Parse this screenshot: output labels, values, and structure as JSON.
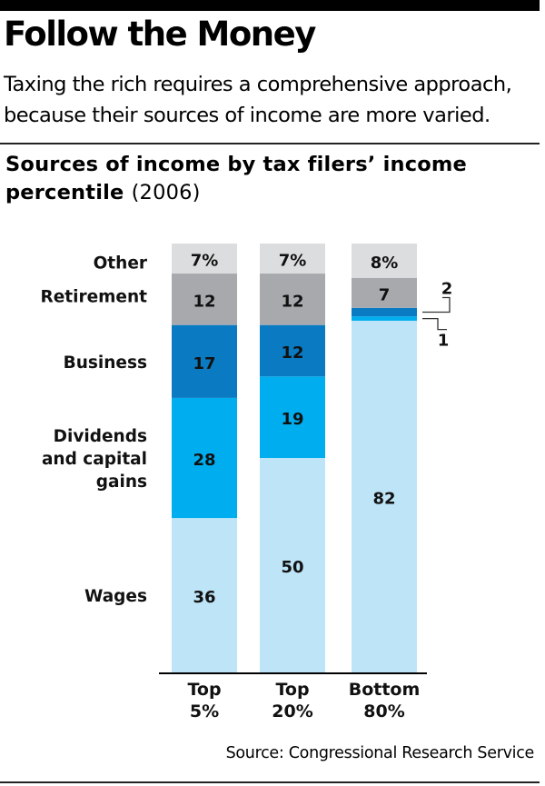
{
  "header": {
    "title": "Follow the Money",
    "subtitle": "Taxing the rich requires a comprehensive approach, because their sources of income are more varied."
  },
  "chart_title": {
    "main": "Sources of income by tax filers’ income percentile",
    "sub": "(2006)"
  },
  "source": "Source: Congressional Research Service",
  "chart_data": {
    "type": "bar",
    "stacked": true,
    "categories": [
      [
        "Top",
        "5%"
      ],
      [
        "Top",
        "20%"
      ],
      [
        "Bottom",
        "80%"
      ]
    ],
    "series": [
      {
        "name": "Wages",
        "values": [
          36,
          50,
          82
        ],
        "labels": [
          "36",
          "50",
          "82"
        ],
        "color": "#bde4f7"
      },
      {
        "name": [
          "Dividends",
          "and capital",
          "gains"
        ],
        "values": [
          28,
          19,
          1
        ],
        "labels": [
          "28",
          "19",
          "1"
        ],
        "color": "#00aeef"
      },
      {
        "name": "Business",
        "values": [
          17,
          12,
          2
        ],
        "labels": [
          "17",
          "12",
          "2"
        ],
        "color": "#0a7bc2"
      },
      {
        "name": "Retirement",
        "values": [
          12,
          12,
          7
        ],
        "labels": [
          "12",
          "12",
          "7"
        ],
        "color": "#a7a9ac"
      },
      {
        "name": "Other",
        "values": [
          7,
          7,
          8
        ],
        "labels": [
          "7%",
          "7%",
          "8%"
        ],
        "color": "#dcddde"
      }
    ],
    "ylim": [
      0,
      100
    ],
    "grid": false,
    "legend": "left"
  }
}
